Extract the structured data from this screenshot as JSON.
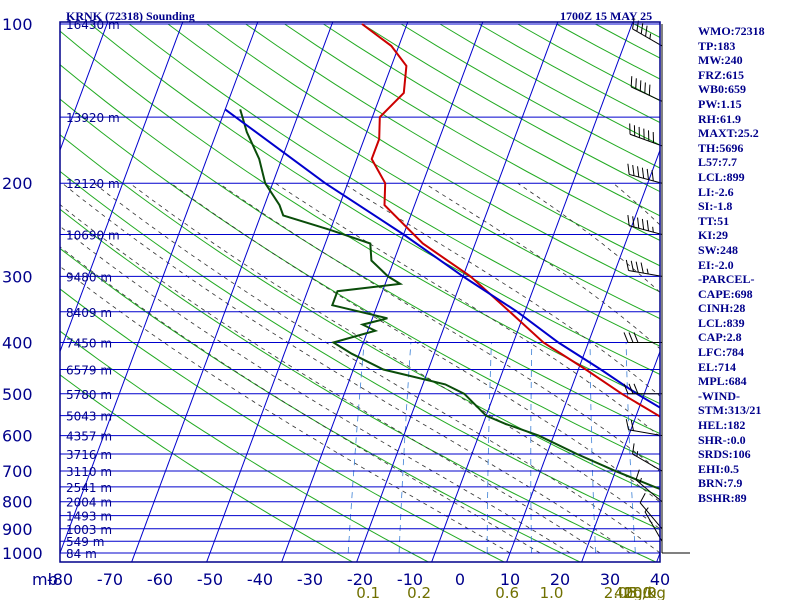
{
  "header": {
    "station": "KRNK (72318) Sounding",
    "time": "1700Z 15 MAY 25"
  },
  "indices": [
    "WMO:72318",
    "TP:183",
    "MW:240",
    "FRZ:615",
    "WB0:659",
    "PW:1.15",
    "RH:61.9",
    "MAXT:25.2",
    "TH:5696",
    "L57:7.7",
    "LCL:899",
    "LI:-2.6",
    "SI:-1.8",
    "TT:51",
    "KI:29",
    "SW:248",
    "EI:-2.0",
    "-PARCEL-",
    "CAPE:698",
    "CINH:28",
    "LCL:839",
    "CAP:2.8",
    "LFC:784",
    "EL:714",
    "MPL:684",
    "-WIND-",
    "STM:313/21",
    "HEL:182",
    "SHR-:0.0",
    "SRDS:106",
    "EHI:0.5",
    "BRN:7.9",
    "BSHR:89"
  ],
  "colors": {
    "frame": "#00008b",
    "isotherm": "#0000cd",
    "isobar": "#0000cd",
    "dry_adiabat": "#22aa22",
    "moist_adiabat": "#333333",
    "mixing_ratio": "#3a7fd5",
    "temperature": "#cc0000",
    "dewpoint": "#0a4d0a",
    "parcel": "#0000cc",
    "mixing_label": "#707000",
    "wind": "#000000"
  },
  "chart_data": {
    "type": "skew-t",
    "title": "KRNK (72318) Sounding",
    "xlabel": "°C",
    "ylabel": "mb",
    "xlim": [
      -80,
      0
    ],
    "pressure_ticks": [
      100,
      200,
      300,
      400,
      500,
      600,
      700,
      800,
      900,
      1000
    ],
    "temperature_ticks": [
      "-80",
      "-70",
      "-60",
      "-50",
      "-40",
      "-30",
      "-20",
      "-10",
      "0",
      "10",
      "20",
      "30",
      "40"
    ],
    "mixing_ratio_labels": [
      "0.1",
      "0.2",
      "0.6",
      "1.0",
      "2.0",
      "3.0",
      "5.0",
      "10.0",
      "20.0",
      "40g/kg"
    ],
    "unit_label": "mb",
    "heights": [
      {
        "p": 100,
        "h": "16430 m"
      },
      {
        "p": 150,
        "h": "13920 m"
      },
      {
        "p": 200,
        "h": "12120 m"
      },
      {
        "p": 250,
        "h": "10690 m"
      },
      {
        "p": 300,
        "h": "9480 m"
      },
      {
        "p": 350,
        "h": "8409 m"
      },
      {
        "p": 400,
        "h": "7450 m"
      },
      {
        "p": 450,
        "h": "6579 m"
      },
      {
        "p": 500,
        "h": "5780 m"
      },
      {
        "p": 550,
        "h": "5043 m"
      },
      {
        "p": 600,
        "h": "4357 m"
      },
      {
        "p": 650,
        "h": "3716 m"
      },
      {
        "p": 700,
        "h": "3110 m"
      },
      {
        "p": 750,
        "h": "2541 m"
      },
      {
        "p": 800,
        "h": "2004 m"
      },
      {
        "p": 850,
        "h": "1493 m"
      },
      {
        "p": 900,
        "h": "1003 m"
      },
      {
        "p": 950,
        "h": "549 m"
      },
      {
        "p": 1000,
        "h": "84 m"
      }
    ],
    "series": [
      {
        "kind": "temperature",
        "points": [
          [
            100,
            -66
          ],
          [
            110,
            -61
          ],
          [
            120,
            -58
          ],
          [
            135,
            -57
          ],
          [
            150,
            -59
          ],
          [
            165,
            -58
          ],
          [
            180,
            -58
          ],
          [
            200,
            -55
          ],
          [
            220,
            -54
          ],
          [
            260,
            -47
          ],
          [
            300,
            -39
          ],
          [
            350,
            -32
          ],
          [
            400,
            -26
          ],
          [
            450,
            -19
          ],
          [
            500,
            -13
          ],
          [
            550,
            -7
          ],
          [
            600,
            -2
          ],
          [
            650,
            0
          ],
          [
            700,
            5
          ],
          [
            750,
            2
          ],
          [
            800,
            6
          ],
          [
            850,
            10
          ],
          [
            900,
            16
          ],
          [
            925,
            19
          ],
          [
            935,
            21
          ]
        ]
      },
      {
        "kind": "dewpoint",
        "points": [
          [
            145,
            -78
          ],
          [
            160,
            -76
          ],
          [
            180,
            -73
          ],
          [
            200,
            -71
          ],
          [
            220,
            -68
          ],
          [
            230,
            -67
          ],
          [
            245,
            -60
          ],
          [
            260,
            -54
          ],
          [
            280,
            -53
          ],
          [
            300,
            -50
          ],
          [
            310,
            -48
          ],
          [
            320,
            -56
          ],
          [
            340,
            -56
          ],
          [
            360,
            -48
          ],
          [
            370,
            -51
          ],
          [
            380,
            -49
          ],
          [
            400,
            -54
          ],
          [
            420,
            -51
          ],
          [
            450,
            -46
          ],
          [
            480,
            -37
          ],
          [
            500,
            -34
          ],
          [
            550,
            -30
          ],
          [
            570,
            -27
          ],
          [
            600,
            -22
          ],
          [
            650,
            -16
          ],
          [
            700,
            -10
          ],
          [
            750,
            -4
          ],
          [
            800,
            2
          ],
          [
            850,
            8
          ],
          [
            900,
            13
          ],
          [
            935,
            17
          ]
        ]
      },
      {
        "kind": "parcel",
        "points": [
          [
            145,
            -80
          ],
          [
            200,
            -63
          ],
          [
            250,
            -50
          ],
          [
            300,
            -40
          ],
          [
            350,
            -31
          ],
          [
            400,
            -24
          ],
          [
            450,
            -17
          ],
          [
            500,
            -11
          ],
          [
            550,
            -5
          ],
          [
            600,
            0
          ],
          [
            650,
            4
          ],
          [
            700,
            8
          ],
          [
            750,
            10
          ],
          [
            800,
            12
          ],
          [
            850,
            15
          ],
          [
            900,
            18
          ],
          [
            935,
            21
          ]
        ]
      }
    ],
    "wind_barbs": [
      {
        "p": 110,
        "dir": 300,
        "kt": 45
      },
      {
        "p": 140,
        "dir": 295,
        "kt": 50
      },
      {
        "p": 170,
        "dir": 290,
        "kt": 60
      },
      {
        "p": 200,
        "dir": 285,
        "kt": 60
      },
      {
        "p": 250,
        "dir": 285,
        "kt": 55
      },
      {
        "p": 300,
        "dir": 280,
        "kt": 45
      },
      {
        "p": 400,
        "dir": 270,
        "kt": 30
      },
      {
        "p": 500,
        "dir": 270,
        "kt": 30
      },
      {
        "p": 600,
        "dir": 280,
        "kt": 20
      },
      {
        "p": 700,
        "dir": 300,
        "kt": 15
      },
      {
        "p": 800,
        "dir": 310,
        "kt": 15
      },
      {
        "p": 900,
        "dir": 320,
        "kt": 10
      },
      {
        "p": 950,
        "dir": 330,
        "kt": 5
      }
    ]
  }
}
